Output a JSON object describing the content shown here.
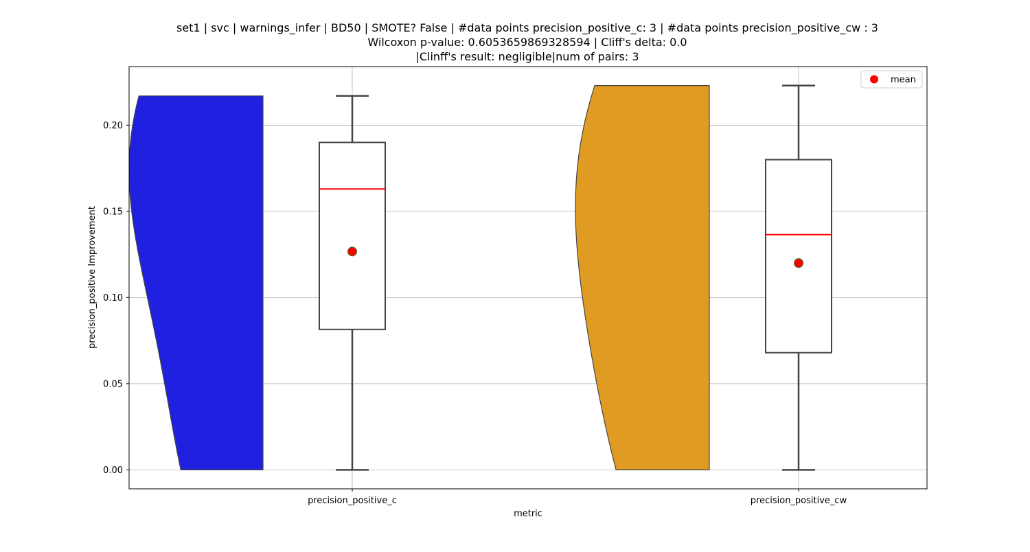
{
  "chart_data": {
    "type": "violin-box",
    "title_lines": [
      "set1 | svc | warnings_infer | BD50 | SMOTE? False | #data points precision_positive_c: 3 | #data points precision_positive_cw : 3",
      "Wilcoxon p-value: 0.6053659869328594 | Cliff's delta: 0.0",
      "|Clinff's result: negligible|num of pairs: 3"
    ],
    "xlabel": "metric",
    "ylabel": "precision_positive Improvement",
    "ylim": [
      -0.011,
      0.234
    ],
    "yticks": [
      0.0,
      0.05,
      0.1,
      0.15,
      0.2
    ],
    "ytick_labels": [
      "0.00",
      "0.05",
      "0.10",
      "0.15",
      "0.20"
    ],
    "grid": true,
    "legend": {
      "position": "top-right",
      "entries": [
        {
          "label": "mean",
          "color": "#ff0000"
        }
      ]
    },
    "series": [
      {
        "category": "precision_positive_c",
        "color": "#2020e0",
        "values": [
          0.0,
          0.163,
          0.217
        ],
        "box": {
          "whisker_low": 0.0,
          "q1": 0.0815,
          "median": 0.163,
          "q3": 0.19,
          "whisker_high": 0.217
        },
        "mean": 0.1267,
        "violin_range": [
          0.0,
          0.217
        ]
      },
      {
        "category": "precision_positive_cw",
        "color": "#e09c22",
        "values": [
          0.0,
          0.1365,
          0.223
        ],
        "box": {
          "whisker_low": 0.0,
          "q1": 0.068,
          "median": 0.1365,
          "q3": 0.18,
          "whisker_high": 0.223
        },
        "mean": 0.12,
        "violin_range": [
          0.0,
          0.223
        ]
      }
    ]
  }
}
